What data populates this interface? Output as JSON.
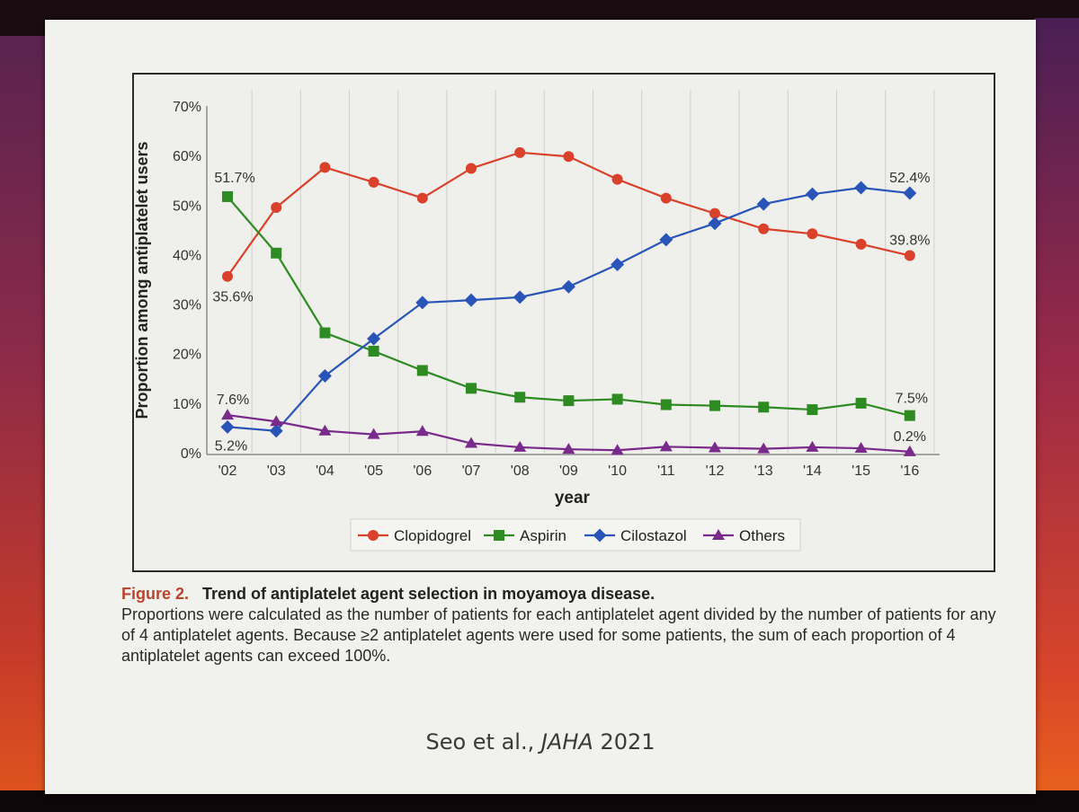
{
  "figure": {
    "label": "Figure 2.",
    "title": "Trend of antiplatelet agent selection in moyamoya disease.",
    "caption": "Proportions were calculated as the number of patients for each antiplatelet agent divided by the number of patients for any of 4 antiplatelet agents. Because ≥2 antiplatelet agents were used for some patients, the sum of each proportion of 4 antiplatelet agents can exceed 100%."
  },
  "citation": {
    "authors": "Seo et al., ",
    "journal": "JAHA",
    "year": " 2021"
  },
  "chart_data": {
    "type": "line",
    "xlabel": "year",
    "ylabel": "Proportion among antiplatelet users",
    "ylim": [
      0,
      70
    ],
    "yticks": [
      "0%",
      "10%",
      "20%",
      "30%",
      "40%",
      "50%",
      "60%",
      "70%"
    ],
    "categories": [
      "'02",
      "'03",
      "'04",
      "'05",
      "'06",
      "'07",
      "'08",
      "'09",
      "'10",
      "'11",
      "'12",
      "'13",
      "'14",
      "'15",
      "'16"
    ],
    "grid": "vertical",
    "legend_position": "bottom",
    "series": [
      {
        "name": "Clopidogrel",
        "color": "#d9412b",
        "marker": "circle",
        "values": [
          35.6,
          49.5,
          57.6,
          54.6,
          51.4,
          57.4,
          60.6,
          59.8,
          55.2,
          51.4,
          48.3,
          45.2,
          44.2,
          42.1,
          39.8
        ]
      },
      {
        "name": "Aspirin",
        "color": "#2e8b22",
        "marker": "square",
        "values": [
          51.7,
          40.3,
          24.2,
          20.5,
          16.6,
          13.0,
          11.2,
          10.5,
          10.8,
          9.7,
          9.5,
          9.2,
          8.7,
          10.0,
          7.5
        ]
      },
      {
        "name": "Cilostazol",
        "color": "#2a55b8",
        "marker": "diamond",
        "values": [
          5.2,
          4.4,
          15.5,
          23.0,
          30.3,
          30.8,
          31.4,
          33.5,
          38.0,
          43.0,
          46.3,
          50.2,
          52.2,
          53.5,
          52.4
        ]
      },
      {
        "name": "Others",
        "color": "#7a2a8a",
        "marker": "triangle",
        "values": [
          7.6,
          6.3,
          4.4,
          3.7,
          4.3,
          1.9,
          1.1,
          0.7,
          0.5,
          1.2,
          1.0,
          0.8,
          1.1,
          0.9,
          0.2
        ]
      }
    ],
    "annotations": [
      {
        "text": "51.7%",
        "series": "Aspirin",
        "index": 0
      },
      {
        "text": "35.6%",
        "series": "Clopidogrel",
        "index": 0
      },
      {
        "text": "7.6%",
        "series": "Others",
        "index": 0
      },
      {
        "text": "5.2%",
        "series": "Cilostazol",
        "index": 0
      },
      {
        "text": "52.4%",
        "series": "Cilostazol",
        "index": 14
      },
      {
        "text": "39.8%",
        "series": "Clopidogrel",
        "index": 14
      },
      {
        "text": "7.5%",
        "series": "Aspirin",
        "index": 14
      },
      {
        "text": "0.2%",
        "series": "Others",
        "index": 14
      }
    ]
  }
}
